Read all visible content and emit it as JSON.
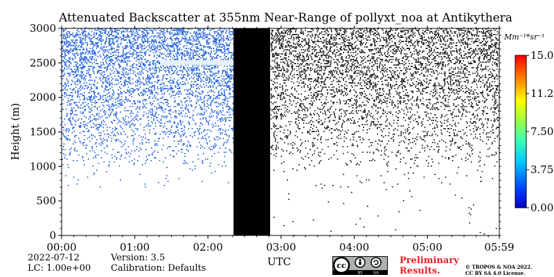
{
  "chart_data": {
    "type": "heatmap",
    "title": "Attenuated Backscatter at 355nm Near-Range of pollyxt_noa at Antikythera",
    "xlabel": "UTC",
    "ylabel": "Height (m)",
    "x_ticks": [
      "00:00",
      "01:00",
      "02:00",
      "03:00",
      "04:00",
      "05:00",
      "05:59"
    ],
    "x_tick_positions_hours": [
      0,
      1,
      2,
      3,
      4,
      5,
      5.983
    ],
    "xlim_hours": [
      0,
      5.983
    ],
    "y_ticks": [
      0,
      500,
      1000,
      1500,
      2000,
      2500,
      3000
    ],
    "ylim": [
      0,
      3000
    ],
    "colorbar": {
      "unit": "Mm⁻¹*sr⁻¹",
      "range": [
        0,
        15
      ],
      "ticks": [
        "0.00",
        "3.75",
        "7.50",
        "11.25",
        "15.00"
      ],
      "colormap": "jet"
    },
    "no_data_interval_hours": [
      2.35,
      2.85
    ],
    "regions": [
      {
        "start_hours": 0.0,
        "end_hours": 2.35,
        "signal": "low backscatter (blue) increasing with height, dense above 1000 m"
      },
      {
        "start_hours": 2.85,
        "end_hours": 5.983,
        "signal": "noise-dominated (black) increasing with height"
      }
    ],
    "cloud_feature": {
      "start_hours": 1.35,
      "end_hours": 2.35,
      "height_m": 2510,
      "color": "#e6f0ff"
    },
    "grid": false
  },
  "footer": {
    "date": "2022-07-12",
    "lc": "LC: 1.00e+00",
    "version": "Version: 3.5",
    "calibration": "Calibration: Defaults",
    "preliminary_line1": "Preliminary",
    "preliminary_line2": "Results.",
    "copyright_line1": "© TROPOS & NOA 2022.",
    "copyright_line2": "CC BY SA 4.0 License.",
    "cc_badge_by": "BY",
    "cc_badge_sa": "SA"
  },
  "colors": {
    "signal_blue": "#0a50dc",
    "noise_black": "#000000",
    "no_data": "#000000",
    "preliminary_red": "#e8202a"
  }
}
